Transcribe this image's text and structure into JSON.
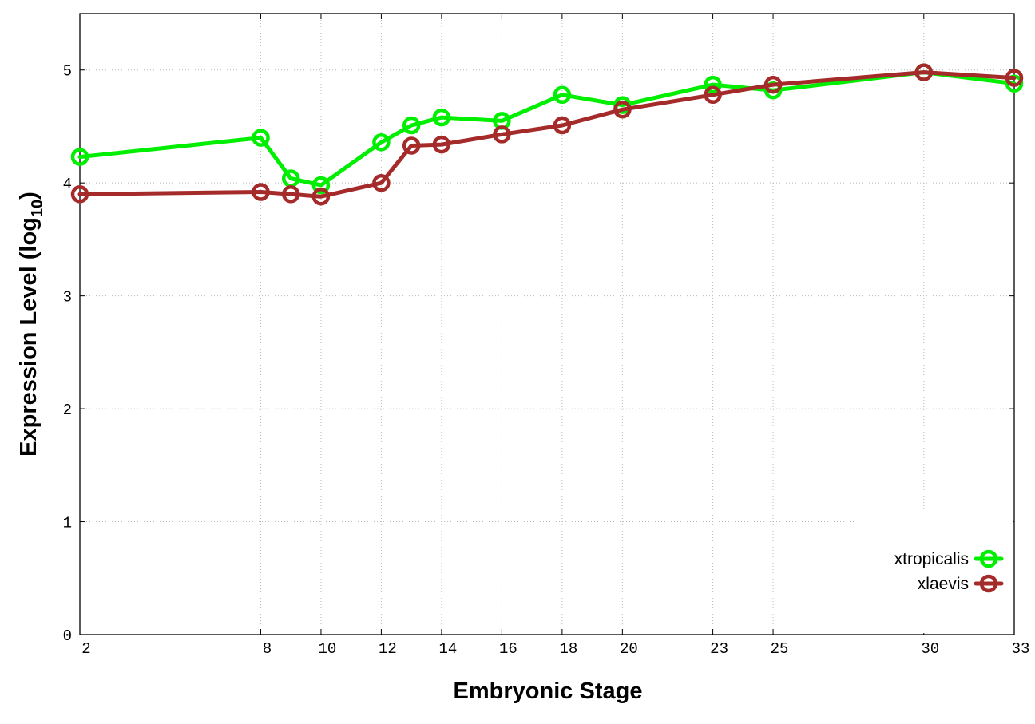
{
  "chart_data": {
    "type": "line",
    "title": "",
    "xlabel": "Embryonic Stage",
    "ylabel": {
      "main": "Expression Level (log",
      "sub": "10",
      "close": ")"
    },
    "xlim": [
      2,
      33
    ],
    "ylim": [
      0,
      5.5
    ],
    "x_ticks": [
      2,
      8,
      10,
      12,
      14,
      16,
      18,
      20,
      23,
      25,
      30,
      33
    ],
    "x_tick_labels": [
      "2",
      "8",
      "10",
      "12",
      "14",
      "16",
      "18",
      "20",
      "23",
      "25",
      "30",
      "33"
    ],
    "x_gridlines": [
      8,
      10,
      12,
      14,
      16,
      18,
      20,
      23,
      25,
      30
    ],
    "y_ticks": [
      0,
      1,
      2,
      3,
      4,
      5
    ],
    "y_tick_labels": [
      "0",
      "1",
      "2",
      "3",
      "4",
      "5"
    ],
    "y_gridlines": [
      1,
      2,
      3,
      4,
      5
    ],
    "grid": true,
    "legend_position": "bottom-right",
    "series": [
      {
        "name": "xtropicalis",
        "color": "#00ee00",
        "x": [
          2,
          8,
          9,
          10,
          12,
          13,
          14,
          16,
          18,
          20,
          23,
          25,
          30,
          33
        ],
        "y": [
          4.23,
          4.4,
          4.04,
          3.98,
          4.36,
          4.51,
          4.58,
          4.55,
          4.78,
          4.69,
          4.87,
          4.82,
          4.98,
          4.88
        ]
      },
      {
        "name": "xlaevis",
        "color": "#a52a2a",
        "x": [
          2,
          8,
          9,
          10,
          12,
          13,
          14,
          16,
          18,
          20,
          23,
          25,
          30,
          33
        ],
        "y": [
          3.9,
          3.92,
          3.9,
          3.88,
          4.0,
          4.33,
          4.34,
          4.43,
          4.51,
          4.65,
          4.78,
          4.87,
          4.98,
          4.93
        ]
      }
    ]
  }
}
